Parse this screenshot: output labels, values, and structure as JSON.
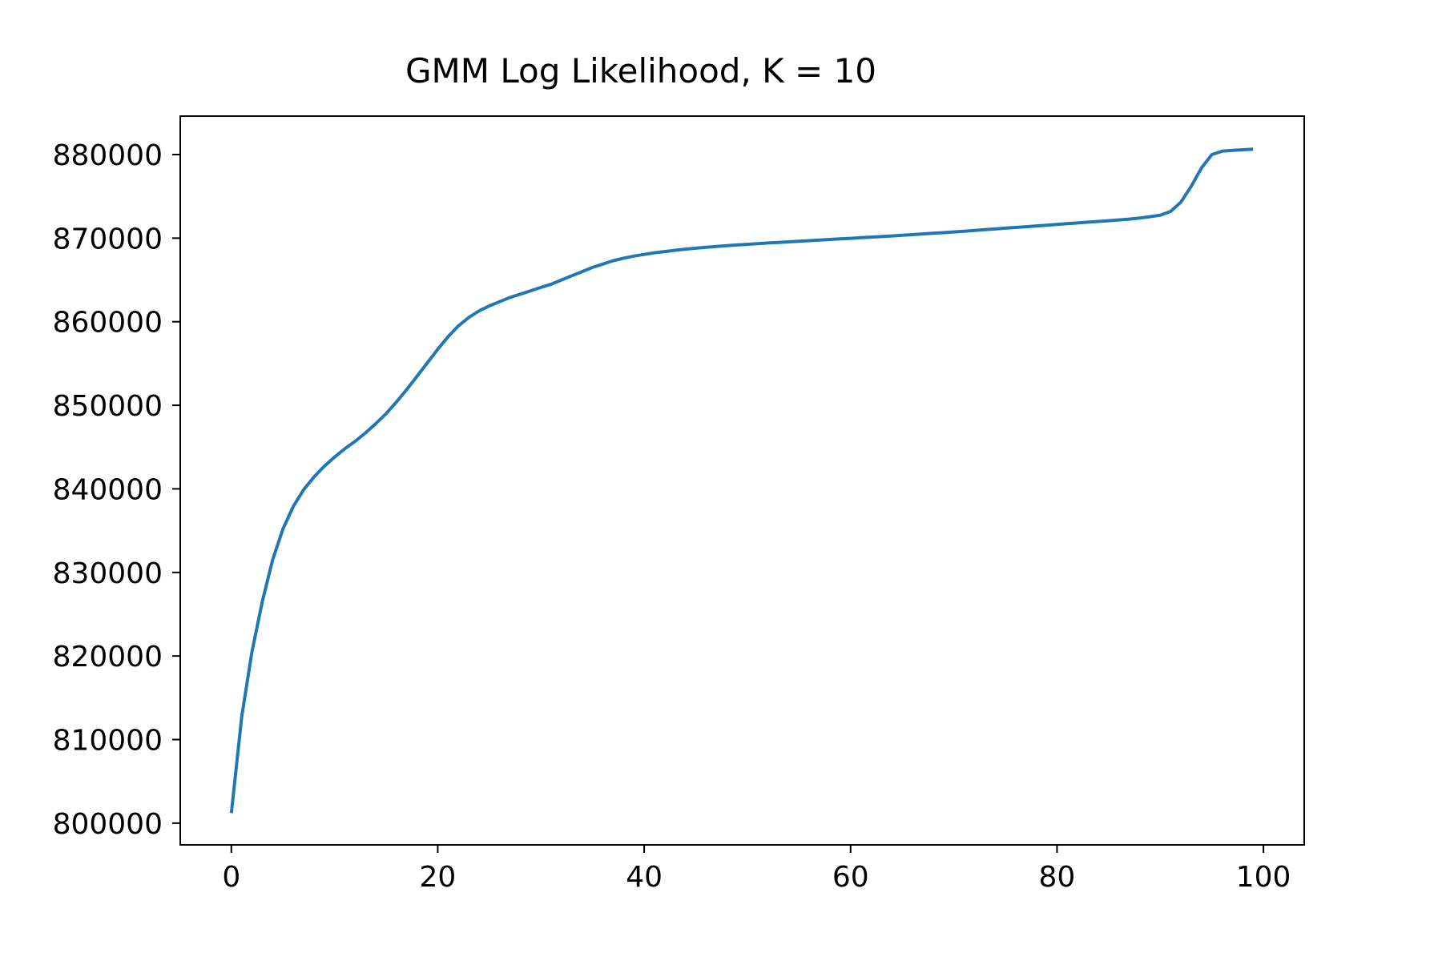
{
  "chart_data": {
    "type": "line",
    "title": "GMM Log Likelihood, K = 10",
    "xlabel": "",
    "ylabel": "",
    "xlim": [
      -4.95,
      103.95
    ],
    "ylim": [
      797400,
      884600
    ],
    "xticks": [
      0,
      20,
      40,
      60,
      80,
      100
    ],
    "yticks": [
      800000,
      810000,
      820000,
      830000,
      840000,
      850000,
      860000,
      870000,
      880000
    ],
    "grid": false,
    "legend": "none",
    "series": [
      {
        "color": "#1f77b4",
        "x": [
          0,
          1,
          2,
          3,
          4,
          5,
          6,
          7,
          8,
          9,
          10,
          11,
          12,
          13,
          14,
          15,
          16,
          17,
          18,
          19,
          20,
          21,
          22,
          23,
          24,
          25,
          26,
          27,
          28,
          29,
          30,
          31,
          32,
          33,
          34,
          35,
          36,
          37,
          38,
          39,
          40,
          41,
          42,
          43,
          44,
          45,
          46,
          47,
          48,
          49,
          50,
          51,
          52,
          53,
          54,
          55,
          56,
          57,
          58,
          59,
          60,
          61,
          62,
          63,
          64,
          65,
          66,
          67,
          68,
          69,
          70,
          71,
          72,
          73,
          74,
          75,
          76,
          77,
          78,
          79,
          80,
          81,
          82,
          83,
          84,
          85,
          86,
          87,
          88,
          89,
          90,
          91,
          92,
          93,
          94,
          95,
          96,
          97,
          98,
          99
        ],
        "y": [
          801200,
          812700,
          820500,
          826500,
          831500,
          835200,
          837900,
          839900,
          841400,
          842700,
          843800,
          844800,
          845700,
          846700,
          847800,
          849000,
          850400,
          851900,
          853500,
          855100,
          856700,
          858200,
          859500,
          860500,
          861300,
          861900,
          862400,
          862900,
          863300,
          863700,
          864100,
          864500,
          865000,
          865500,
          866000,
          866500,
          866900,
          867300,
          867600,
          867850,
          868050,
          868250,
          868400,
          868550,
          868680,
          868800,
          868900,
          869000,
          869100,
          869180,
          869260,
          869340,
          869420,
          869490,
          869560,
          869630,
          869700,
          869770,
          869840,
          869910,
          869980,
          870050,
          870120,
          870190,
          870260,
          870340,
          870420,
          870500,
          870580,
          870660,
          870740,
          870830,
          870920,
          871010,
          871100,
          871190,
          871280,
          871370,
          871460,
          871550,
          871640,
          871730,
          871820,
          871910,
          872000,
          872090,
          872180,
          872280,
          872400,
          872560,
          872750,
          873200,
          874300,
          876200,
          878400,
          880000,
          880400,
          880500,
          880580,
          880650
        ]
      }
    ]
  }
}
